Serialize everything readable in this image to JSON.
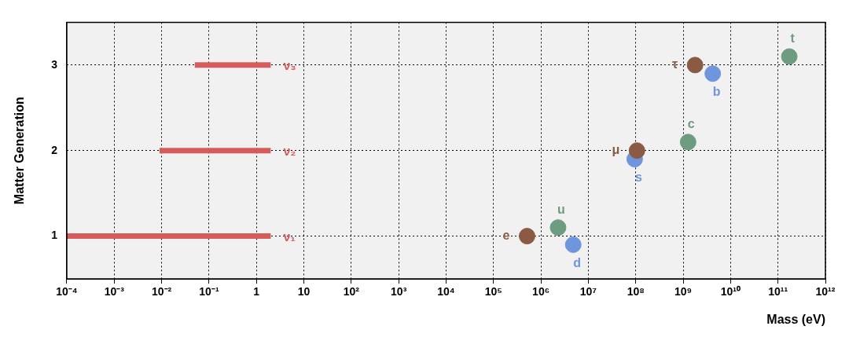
{
  "chart_data": {
    "type": "scatter",
    "xlabel": "Mass (eV)",
    "ylabel": "Matter Generation",
    "log": "x",
    "grid": true,
    "marker": "circle",
    "xlim": [
      0.0001,
      1000000000000
    ],
    "ylim": [
      0.5,
      3.5
    ],
    "xticks": [
      {
        "value": 0.0001,
        "label": "10⁻⁴"
      },
      {
        "value": 0.001,
        "label": "10⁻³"
      },
      {
        "value": 0.01,
        "label": "10⁻²"
      },
      {
        "value": 0.1,
        "label": "10⁻¹"
      },
      1,
      10,
      {
        "value": 100,
        "label": "10²"
      },
      {
        "value": 1000,
        "label": "10³"
      },
      {
        "value": 10000,
        "label": "10⁴"
      },
      {
        "value": 100000,
        "label": "10⁵"
      },
      {
        "value": 1000000,
        "label": "10⁶"
      },
      {
        "value": 10000000,
        "label": "10⁷"
      },
      {
        "value": 100000000,
        "label": "10⁸"
      },
      {
        "value": 1000000000,
        "label": "10⁹"
      },
      {
        "value": 10000000000,
        "label": "10¹⁰"
      },
      {
        "value": 100000000000,
        "label": "10¹¹"
      },
      {
        "value": 1000000000000,
        "label": "10¹²"
      }
    ],
    "yticks": [
      1,
      2,
      3
    ],
    "series": [
      {
        "type": "line",
        "marker": "none",
        "name": "ν₁",
        "color": "#d65c5c",
        "x": [
          0.0001,
          2
        ],
        "values": [
          1,
          1
        ]
      },
      {
        "type": "line",
        "marker": "none",
        "name": "ν₂",
        "color": "#d65c5c",
        "x": [
          0.009,
          2
        ],
        "values": [
          2,
          2
        ]
      },
      {
        "type": "line",
        "marker": "none",
        "name": "ν₃",
        "color": "#d65c5c",
        "x": [
          0.05,
          2
        ],
        "values": [
          3,
          3
        ]
      },
      {
        "color": "#8b5a45",
        "x": [
          510000,
          106000000,
          1780000000
        ],
        "values": [
          1,
          2,
          3
        ]
      },
      {
        "color": "#6e9c80",
        "x": [
          2300000,
          1270000000,
          173000000000
        ],
        "values": [
          1.1,
          2.1,
          3.1
        ]
      },
      {
        "color": "#6f95dc",
        "x": [
          4800000,
          95000000,
          4200000000
        ],
        "values": [
          0.9,
          1.9,
          2.9
        ]
      }
    ],
    "annotations": [
      {
        "text": "e",
        "x": 510000,
        "y": 1
      },
      {
        "text": "μ",
        "x": 106000000,
        "y": 2
      },
      {
        "text": "τ",
        "x": 1780000000,
        "y": 3
      },
      {
        "text": "u",
        "x": 2300000,
        "y": 1.1
      },
      {
        "text": "c",
        "x": 1270000000,
        "y": 2.1
      },
      {
        "text": "t",
        "x": 173000000000,
        "y": 3.1
      },
      {
        "text": "d",
        "x": 4800000,
        "y": 0.9
      },
      {
        "text": "s",
        "x": 95000000,
        "y": 1.9
      },
      {
        "text": "b",
        "x": 4200000000,
        "y": 2.9
      }
    ]
  }
}
